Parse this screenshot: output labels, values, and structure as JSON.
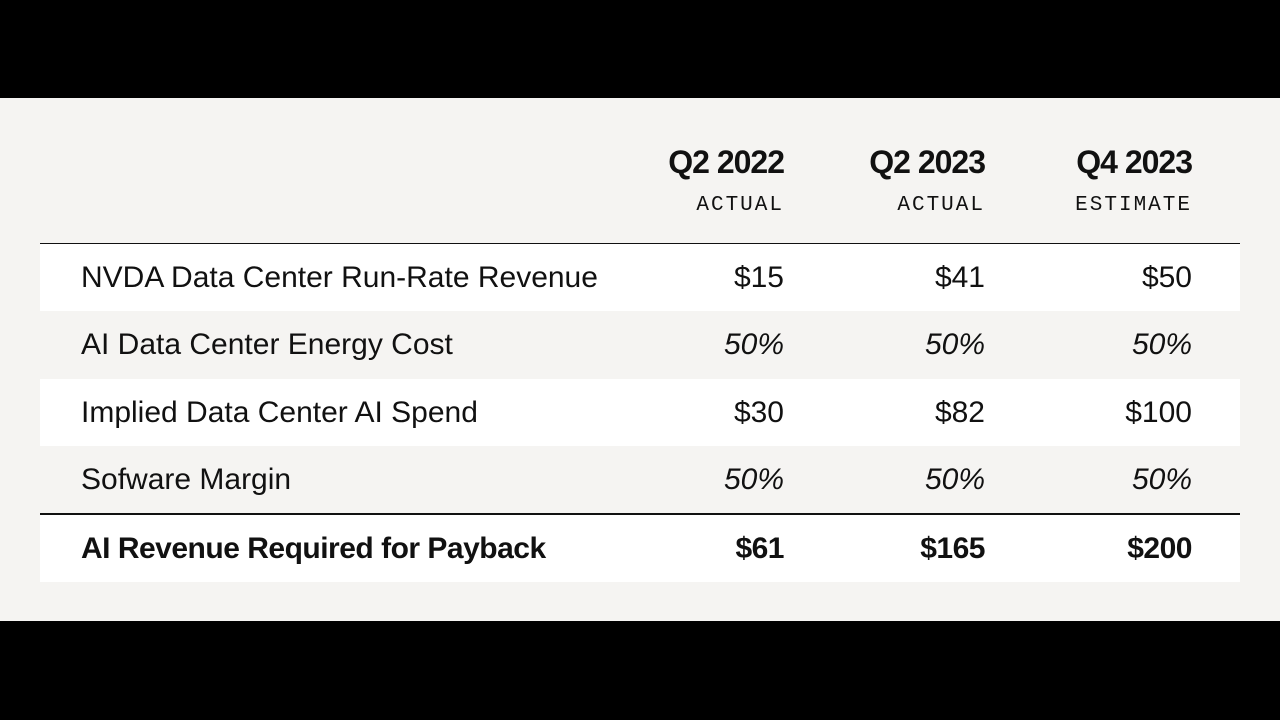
{
  "chart_data": {
    "type": "table",
    "columns": [
      {
        "period": "Q2 2022",
        "kind": "ACTUAL"
      },
      {
        "period": "Q2 2023",
        "kind": "ACTUAL"
      },
      {
        "period": "Q4 2023",
        "kind": "ESTIMATE"
      }
    ],
    "rows": [
      {
        "label": "NVDA Data Center Run-Rate Revenue",
        "values": [
          "$15",
          "$41",
          "$50"
        ],
        "style": "plain"
      },
      {
        "label": "AI Data Center Energy Cost",
        "values": [
          "50%",
          "50%",
          "50%"
        ],
        "style": "percent"
      },
      {
        "label": "Implied Data Center AI Spend",
        "values": [
          "$30",
          "$82",
          "$100"
        ],
        "style": "plain"
      },
      {
        "label": "Sofware Margin",
        "values": [
          "50%",
          "50%",
          "50%"
        ],
        "style": "percent"
      },
      {
        "label": "AI Revenue Required for Payback",
        "values": [
          "$61",
          "$165",
          "$200"
        ],
        "style": "total"
      }
    ]
  },
  "colors": {
    "letterbox": "#000000",
    "slide_background": "#f5f4f2",
    "shaded_row": "#ffffff",
    "text": "#111111"
  }
}
